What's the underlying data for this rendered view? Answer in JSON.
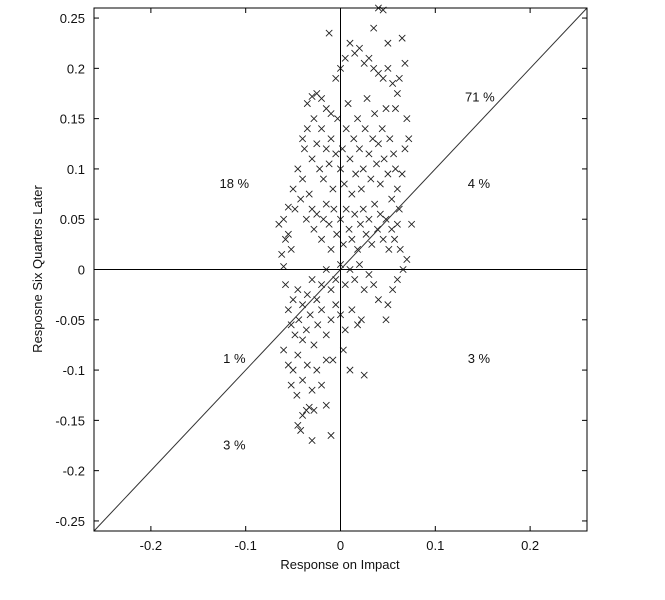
{
  "chart_data": {
    "type": "scatter",
    "title": "",
    "xlabel": "Response on Impact",
    "ylabel": "Resposne Six Quarters Later",
    "xlim": [
      -0.26,
      0.26
    ],
    "ylim": [
      -0.26,
      0.26
    ],
    "xticks": [
      -0.2,
      -0.1,
      0,
      0.1,
      0.2
    ],
    "xtick_labels": [
      "-0.2",
      "-0.1",
      "0",
      "0.1",
      "0.2"
    ],
    "yticks": [
      -0.25,
      -0.2,
      -0.15,
      -0.1,
      -0.05,
      0,
      0.05,
      0.1,
      0.15,
      0.2,
      0.25
    ],
    "ytick_labels": [
      "-0.25",
      "-0.2",
      "-0.15",
      "-0.1",
      "-0.05",
      "0",
      "0.05",
      "0.1",
      "0.15",
      "0.2",
      "0.25"
    ],
    "grid": false,
    "marker": "x",
    "marker_color": "#222222",
    "reference_lines": [
      "x = 0",
      "y = 0",
      "y = x"
    ],
    "annotations": [
      {
        "text": "71 %",
        "x": 0.147,
        "y": 0.172
      },
      {
        "text": "18 %",
        "x": -0.112,
        "y": 0.086
      },
      {
        "text": "4 %",
        "x": 0.146,
        "y": 0.086
      },
      {
        "text": "1 %",
        "x": -0.112,
        "y": -0.088
      },
      {
        "text": "3 %",
        "x": 0.146,
        "y": -0.088
      },
      {
        "text": "3 %",
        "x": -0.112,
        "y": -0.174
      }
    ],
    "points": [
      [
        -0.012,
        0.235
      ],
      [
        0.04,
        0.26
      ],
      [
        0.045,
        0.258
      ],
      [
        0.035,
        0.24
      ],
      [
        0.01,
        0.225
      ],
      [
        0.05,
        0.225
      ],
      [
        0.065,
        0.23
      ],
      [
        0.068,
        0.205
      ],
      [
        -0.035,
        0.165
      ],
      [
        -0.03,
        0.172
      ],
      [
        -0.025,
        0.175
      ],
      [
        -0.02,
        0.17
      ],
      [
        -0.015,
        0.16
      ],
      [
        -0.01,
        0.155
      ],
      [
        -0.005,
        0.19
      ],
      [
        0.0,
        0.2
      ],
      [
        0.005,
        0.21
      ],
      [
        0.015,
        0.215
      ],
      [
        0.02,
        0.22
      ],
      [
        0.025,
        0.205
      ],
      [
        0.03,
        0.21
      ],
      [
        0.035,
        0.2
      ],
      [
        0.04,
        0.195
      ],
      [
        0.045,
        0.19
      ],
      [
        0.05,
        0.2
      ],
      [
        0.055,
        0.185
      ],
      [
        0.06,
        0.175
      ],
      [
        0.062,
        0.19
      ],
      [
        0.058,
        0.16
      ],
      [
        0.07,
        0.15
      ],
      [
        0.072,
        0.13
      ],
      [
        0.068,
        0.12
      ],
      [
        -0.04,
        0.13
      ],
      [
        -0.038,
        0.12
      ],
      [
        -0.035,
        0.14
      ],
      [
        -0.03,
        0.11
      ],
      [
        -0.028,
        0.15
      ],
      [
        -0.025,
        0.125
      ],
      [
        -0.022,
        0.1
      ],
      [
        -0.02,
        0.14
      ],
      [
        -0.018,
        0.09
      ],
      [
        -0.015,
        0.12
      ],
      [
        -0.012,
        0.105
      ],
      [
        -0.01,
        0.13
      ],
      [
        -0.008,
        0.08
      ],
      [
        -0.005,
        0.115
      ],
      [
        -0.003,
        0.15
      ],
      [
        0.0,
        0.1
      ],
      [
        0.002,
        0.12
      ],
      [
        0.004,
        0.085
      ],
      [
        0.006,
        0.14
      ],
      [
        0.008,
        0.165
      ],
      [
        0.01,
        0.11
      ],
      [
        0.012,
        0.075
      ],
      [
        0.014,
        0.13
      ],
      [
        0.016,
        0.095
      ],
      [
        0.018,
        0.15
      ],
      [
        0.02,
        0.12
      ],
      [
        0.022,
        0.08
      ],
      [
        0.024,
        0.1
      ],
      [
        0.026,
        0.14
      ],
      [
        0.028,
        0.17
      ],
      [
        0.03,
        0.115
      ],
      [
        0.032,
        0.09
      ],
      [
        0.034,
        0.13
      ],
      [
        0.036,
        0.155
      ],
      [
        0.038,
        0.105
      ],
      [
        0.04,
        0.125
      ],
      [
        0.042,
        0.085
      ],
      [
        0.044,
        0.14
      ],
      [
        0.046,
        0.11
      ],
      [
        0.048,
        0.16
      ],
      [
        0.05,
        0.095
      ],
      [
        0.052,
        0.13
      ],
      [
        0.054,
        0.07
      ],
      [
        0.056,
        0.115
      ],
      [
        0.058,
        0.1
      ],
      [
        0.06,
        0.08
      ],
      [
        0.062,
        0.06
      ],
      [
        0.065,
        0.095
      ],
      [
        -0.045,
        0.1
      ],
      [
        -0.05,
        0.08
      ],
      [
        -0.048,
        0.06
      ],
      [
        -0.042,
        0.07
      ],
      [
        -0.04,
        0.09
      ],
      [
        -0.036,
        0.05
      ],
      [
        -0.033,
        0.075
      ],
      [
        -0.03,
        0.06
      ],
      [
        -0.065,
        0.045
      ],
      [
        -0.06,
        0.05
      ],
      [
        -0.055,
        0.062
      ],
      [
        -0.058,
        0.03
      ],
      [
        -0.062,
        0.015
      ],
      [
        -0.06,
        0.003
      ],
      [
        -0.055,
        0.035
      ],
      [
        -0.052,
        0.02
      ],
      [
        -0.028,
        0.04
      ],
      [
        -0.025,
        0.055
      ],
      [
        -0.02,
        0.03
      ],
      [
        -0.018,
        0.05
      ],
      [
        -0.015,
        0.065
      ],
      [
        -0.012,
        0.045
      ],
      [
        -0.01,
        0.02
      ],
      [
        -0.007,
        0.06
      ],
      [
        -0.004,
        0.035
      ],
      [
        0.0,
        0.05
      ],
      [
        0.003,
        0.025
      ],
      [
        0.006,
        0.06
      ],
      [
        0.009,
        0.04
      ],
      [
        0.012,
        0.03
      ],
      [
        0.015,
        0.055
      ],
      [
        0.018,
        0.02
      ],
      [
        0.021,
        0.045
      ],
      [
        0.024,
        0.06
      ],
      [
        0.027,
        0.035
      ],
      [
        0.03,
        0.05
      ],
      [
        0.033,
        0.025
      ],
      [
        0.036,
        0.065
      ],
      [
        0.039,
        0.04
      ],
      [
        0.042,
        0.055
      ],
      [
        0.045,
        0.03
      ],
      [
        0.048,
        0.05
      ],
      [
        0.051,
        0.02
      ],
      [
        0.054,
        0.04
      ],
      [
        0.057,
        0.03
      ],
      [
        0.06,
        0.045
      ],
      [
        0.063,
        0.02
      ],
      [
        0.075,
        0.045
      ],
      [
        0.07,
        0.01
      ],
      [
        0.066,
        0.0
      ],
      [
        0.06,
        -0.01
      ],
      [
        0.055,
        -0.02
      ],
      [
        0.05,
        -0.035
      ],
      [
        0.048,
        -0.05
      ],
      [
        0.04,
        -0.03
      ],
      [
        0.035,
        -0.015
      ],
      [
        0.03,
        -0.005
      ],
      [
        0.025,
        -0.02
      ],
      [
        0.02,
        0.005
      ],
      [
        0.015,
        -0.01
      ],
      [
        0.01,
        0.0
      ],
      [
        0.005,
        -0.015
      ],
      [
        0.0,
        0.005
      ],
      [
        -0.005,
        -0.01
      ],
      [
        -0.01,
        -0.02
      ],
      [
        -0.015,
        0.0
      ],
      [
        -0.02,
        -0.015
      ],
      [
        -0.025,
        -0.03
      ],
      [
        -0.03,
        -0.01
      ],
      [
        -0.035,
        -0.025
      ],
      [
        -0.04,
        -0.035
      ],
      [
        -0.045,
        -0.02
      ],
      [
        -0.05,
        -0.03
      ],
      [
        -0.055,
        -0.04
      ],
      [
        -0.058,
        -0.015
      ],
      [
        -0.052,
        -0.055
      ],
      [
        -0.048,
        -0.065
      ],
      [
        -0.044,
        -0.05
      ],
      [
        -0.04,
        -0.07
      ],
      [
        -0.036,
        -0.06
      ],
      [
        -0.032,
        -0.045
      ],
      [
        -0.028,
        -0.075
      ],
      [
        -0.024,
        -0.055
      ],
      [
        -0.02,
        -0.04
      ],
      [
        -0.015,
        -0.065
      ],
      [
        -0.01,
        -0.05
      ],
      [
        -0.005,
        -0.035
      ],
      [
        0.0,
        -0.045
      ],
      [
        0.005,
        -0.06
      ],
      [
        0.012,
        -0.04
      ],
      [
        0.018,
        -0.055
      ],
      [
        0.022,
        -0.05
      ],
      [
        0.01,
        -0.1
      ],
      [
        0.025,
        -0.105
      ],
      [
        0.003,
        -0.08
      ],
      [
        -0.008,
        -0.09
      ],
      [
        -0.06,
        -0.08
      ],
      [
        -0.055,
        -0.095
      ],
      [
        -0.05,
        -0.1
      ],
      [
        -0.045,
        -0.085
      ],
      [
        -0.04,
        -0.11
      ],
      [
        -0.035,
        -0.095
      ],
      [
        -0.03,
        -0.12
      ],
      [
        -0.025,
        -0.1
      ],
      [
        -0.052,
        -0.115
      ],
      [
        -0.046,
        -0.125
      ],
      [
        -0.02,
        -0.115
      ],
      [
        -0.015,
        -0.09
      ],
      [
        -0.04,
        -0.145
      ],
      [
        -0.036,
        -0.14
      ],
      [
        -0.03,
        -0.17
      ],
      [
        -0.01,
        -0.165
      ],
      [
        -0.045,
        -0.155
      ],
      [
        -0.042,
        -0.16
      ],
      [
        -0.033,
        -0.137
      ],
      [
        -0.028,
        -0.14
      ],
      [
        -0.015,
        -0.135
      ]
    ]
  }
}
